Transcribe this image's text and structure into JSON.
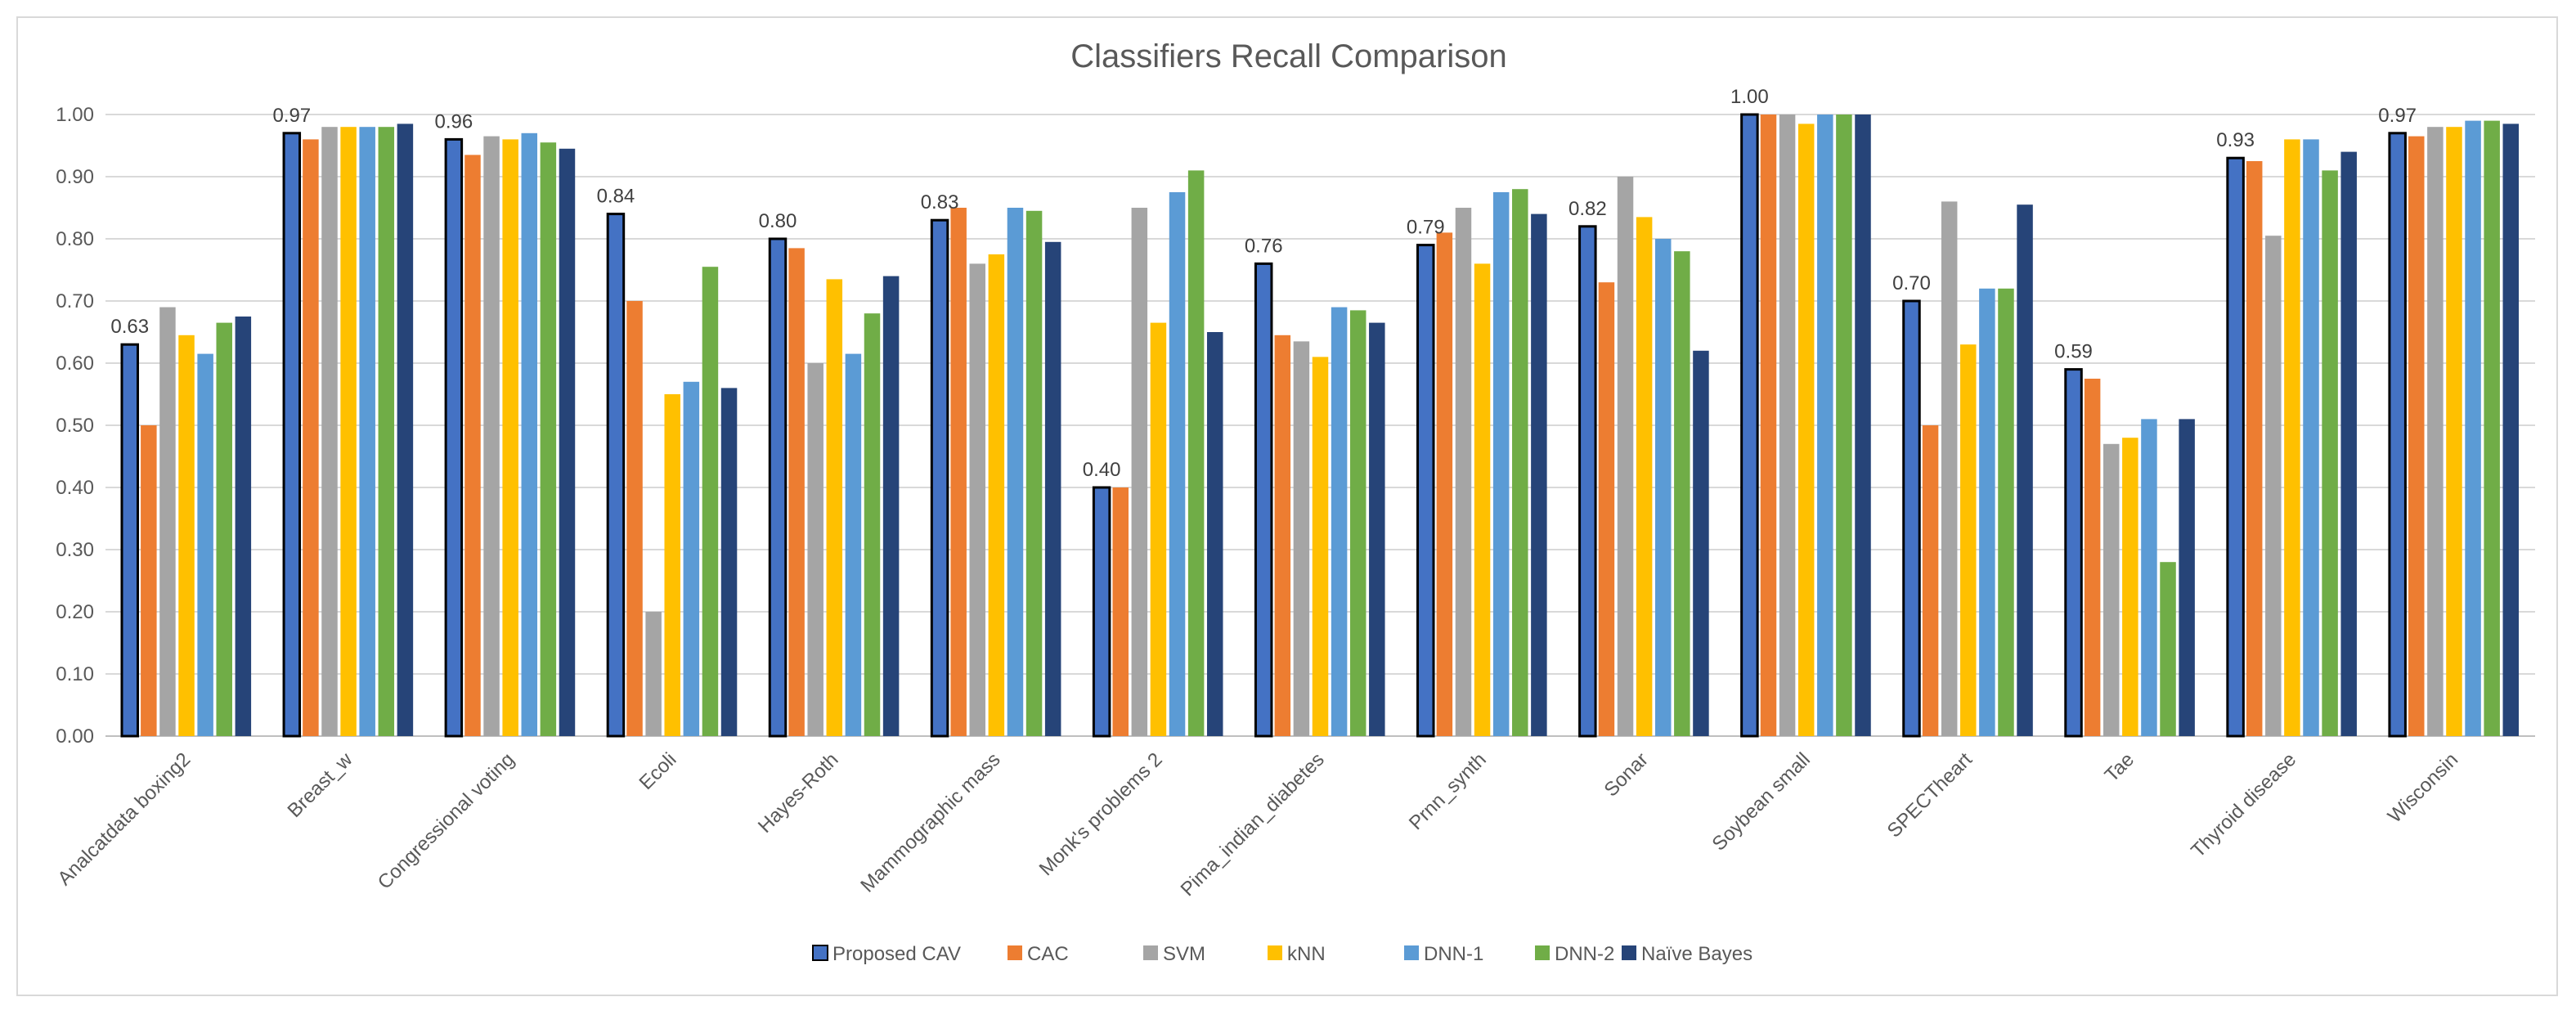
{
  "chart_data": {
    "type": "bar",
    "title": "Classifiers Recall Comparison",
    "xlabel": "",
    "ylabel": "",
    "ylim": [
      0,
      1
    ],
    "y_ticks": [
      "0.00",
      "0.10",
      "0.20",
      "0.30",
      "0.40",
      "0.50",
      "0.60",
      "0.70",
      "0.80",
      "0.90",
      "1.00"
    ],
    "categories": [
      "Analcatdata boxing2",
      "Breast_w",
      "Congressional voting",
      "Ecoli",
      "Hayes-Roth",
      "Mammographic mass",
      "Monk's problems 2",
      "Pima_indian_diabetes",
      "Prnn_synth",
      "Sonar",
      "Soybean small",
      "SPECTheart",
      "Tae",
      "Thyroid disease",
      "Wisconsin"
    ],
    "series": [
      {
        "name": "Proposed CAV",
        "color": "#4472c4",
        "outlined": true,
        "values": [
          0.63,
          0.97,
          0.96,
          0.84,
          0.8,
          0.83,
          0.4,
          0.76,
          0.79,
          0.82,
          1.0,
          0.7,
          0.59,
          0.93,
          0.97
        ],
        "data_labels": [
          "0.63",
          "0.97",
          "0.96",
          "0.84",
          "0.80",
          "0.83",
          "0.40",
          "0.76",
          "0.79",
          "0.82",
          "1.00",
          "0.70",
          "0.59",
          "0.93",
          "0.97"
        ]
      },
      {
        "name": "CAC",
        "color": "#ed7d31",
        "values": [
          0.5,
          0.96,
          0.935,
          0.7,
          0.785,
          0.85,
          0.4,
          0.645,
          0.81,
          0.73,
          1.0,
          0.5,
          0.575,
          0.925,
          0.965
        ]
      },
      {
        "name": "SVM",
        "color": "#a5a5a5",
        "values": [
          0.69,
          0.98,
          0.965,
          0.2,
          0.6,
          0.76,
          0.85,
          0.635,
          0.85,
          0.9,
          1.0,
          0.86,
          0.47,
          0.805,
          0.98
        ]
      },
      {
        "name": "kNN",
        "color": "#ffc000",
        "values": [
          0.645,
          0.98,
          0.96,
          0.55,
          0.735,
          0.775,
          0.665,
          0.61,
          0.76,
          0.835,
          0.985,
          0.63,
          0.48,
          0.96,
          0.98
        ]
      },
      {
        "name": "DNN-1",
        "color": "#5b9bd5",
        "values": [
          0.615,
          0.98,
          0.97,
          0.57,
          0.615,
          0.85,
          0.875,
          0.69,
          0.875,
          0.8,
          1.0,
          0.72,
          0.51,
          0.96,
          0.99
        ]
      },
      {
        "name": "DNN-2",
        "color": "#70ad47",
        "values": [
          0.665,
          0.98,
          0.955,
          0.755,
          0.68,
          0.845,
          0.91,
          0.685,
          0.88,
          0.78,
          1.0,
          0.72,
          0.28,
          0.91,
          0.99
        ]
      },
      {
        "name": "Naïve Bayes",
        "color": "#264478",
        "values": [
          0.675,
          0.985,
          0.945,
          0.56,
          0.74,
          0.795,
          0.65,
          0.665,
          0.84,
          0.62,
          1.0,
          0.855,
          0.51,
          0.94,
          0.985
        ]
      }
    ],
    "grid": true,
    "legend_position": "bottom"
  }
}
